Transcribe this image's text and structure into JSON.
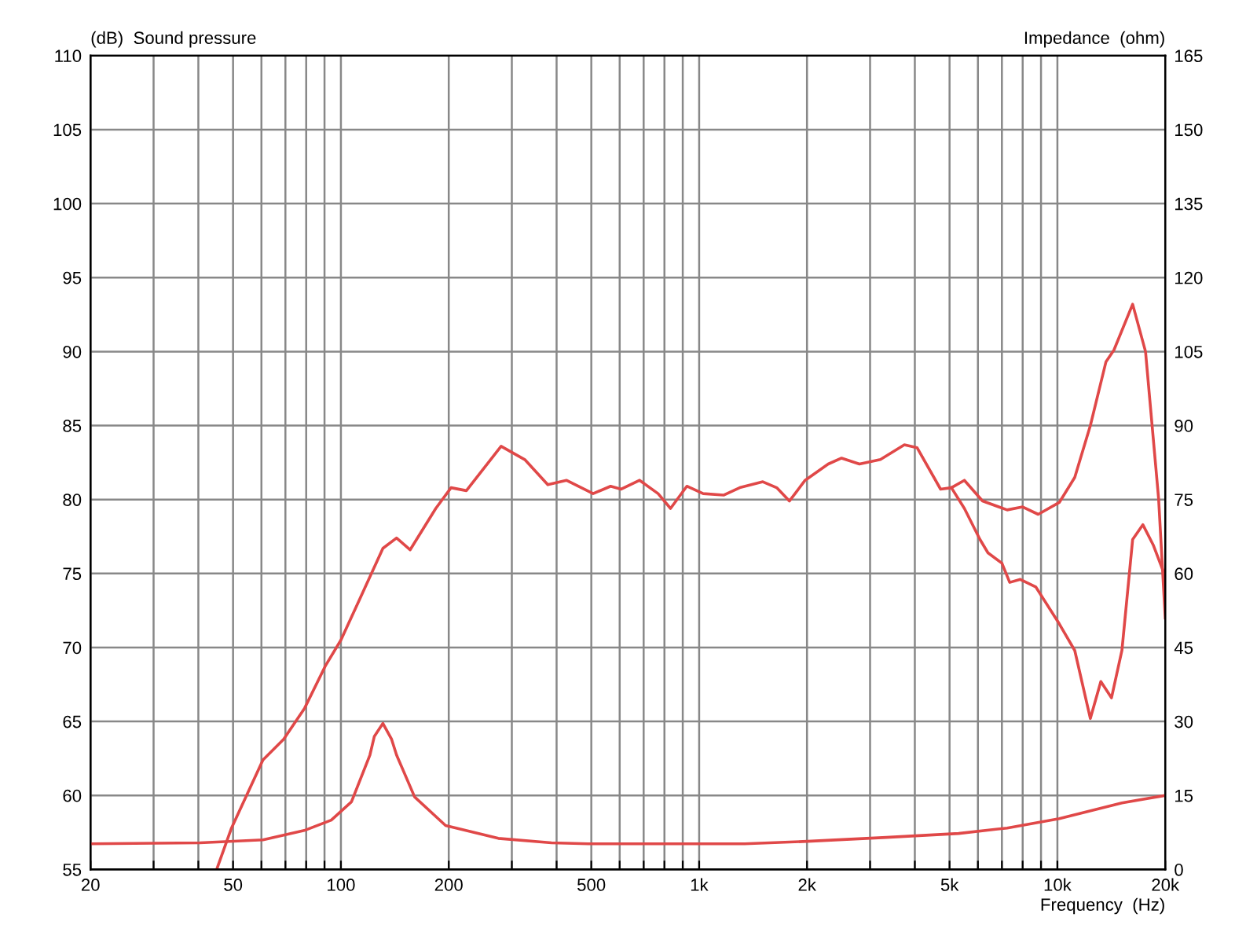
{
  "chart_data": {
    "type": "line",
    "xlabel": "Frequency  (Hz)",
    "ylabel": "(dB)  Sound pressure",
    "y2label": "Impedance  (ohm)",
    "log": "x",
    "grid": true,
    "marker": "none",
    "line_style": "solid",
    "xlim": [
      20,
      20000
    ],
    "xticks": [
      20,
      {
        "value": 30,
        "label": null
      },
      {
        "value": 40,
        "label": null
      },
      50,
      {
        "value": 60,
        "label": null
      },
      {
        "value": 70,
        "label": null
      },
      {
        "value": 80,
        "label": null
      },
      {
        "value": 90,
        "label": null
      },
      100,
      200,
      {
        "value": 300,
        "label": null
      },
      {
        "value": 400,
        "label": null
      },
      500,
      {
        "value": 600,
        "label": null
      },
      {
        "value": 700,
        "label": null
      },
      {
        "value": 800,
        "label": null
      },
      {
        "value": 900,
        "label": null
      },
      {
        "value": 1000,
        "label": "1k"
      },
      {
        "value": 2000,
        "label": "2k"
      },
      {
        "value": 3000,
        "label": null
      },
      {
        "value": 4000,
        "label": null
      },
      {
        "value": 5000,
        "label": "5k"
      },
      {
        "value": 6000,
        "label": null
      },
      {
        "value": 7000,
        "label": null
      },
      {
        "value": 8000,
        "label": null
      },
      {
        "value": 9000,
        "label": null
      },
      {
        "value": 10000,
        "label": "10k"
      },
      {
        "value": 20000,
        "label": "20k"
      }
    ],
    "ylim": [
      55,
      110
    ],
    "yticks": [
      55,
      60,
      65,
      70,
      75,
      80,
      85,
      90,
      95,
      100,
      105,
      110
    ],
    "y2lim": [
      0,
      165
    ],
    "y2ticks": [
      0,
      15,
      30,
      45,
      60,
      75,
      90,
      105,
      120,
      135,
      150,
      165
    ],
    "series": [
      {
        "color": "#e04848",
        "x": [
          45,
          49.5,
          60.6,
          69.2,
          79.2,
          90.7,
          100,
          115,
          131,
          143,
          156,
          184,
          203,
          224,
          280,
          326,
          378,
          426,
          506,
          566,
          606,
          682,
          768,
          832,
          924,
          1026,
          1170,
          1298,
          1506,
          1646,
          1786,
          1976,
          2292,
          2498,
          2802,
          3206,
          3740,
          4060,
          4720,
          5060,
          5500,
          6180,
          7240,
          8000,
          8840,
          10120,
          11180,
          12360,
          13660,
          14380,
          16220,
          17620,
          19160,
          20000
        ],
        "values": [
          55,
          57.8,
          62.4,
          63.8,
          65.9,
          68.8,
          70.5,
          73.7,
          76.7,
          77.4,
          76.6,
          79.4,
          80.8,
          80.6,
          83.6,
          82.7,
          81.0,
          81.3,
          80.4,
          80.9,
          80.7,
          81.3,
          80.4,
          79.4,
          80.9,
          80.4,
          80.3,
          80.8,
          81.2,
          80.8,
          79.9,
          81.3,
          82.4,
          82.8,
          82.4,
          82.7,
          83.7,
          83.5,
          80.7,
          80.8,
          81.3,
          79.9,
          79.3,
          79.5,
          79.0,
          79.8,
          81.5,
          85.0,
          89.3,
          90.1,
          93.2,
          90.0,
          80.1,
          72.0
        ]
      },
      {
        "color": "#e04848",
        "x": [
          5060,
          5500,
          6080,
          6400,
          7000,
          7360,
          7880,
          8700,
          10120,
          11180,
          12360,
          13220,
          14160,
          15140,
          16220,
          17320,
          18540,
          20000
        ],
        "values": [
          80.8,
          79.4,
          77.3,
          76.4,
          75.7,
          74.4,
          74.6,
          74.1,
          71.6,
          69.8,
          65.2,
          67.7,
          66.6,
          69.8,
          77.3,
          78.3,
          76.9,
          74.8
        ]
      },
      {
        "color": "#e04848",
        "axis": "y2",
        "x": [
          20,
          40.4,
          60.6,
          79,
          94,
          107,
          120.5,
          124,
          131,
          138.5,
          143,
          160.6,
          196,
          275,
          387,
          490,
          1340,
          2005,
          3330,
          5300,
          7240,
          10120,
          15140,
          20000
        ],
        "values": [
          5.2,
          5.4,
          6.0,
          7.9,
          10.0,
          13.7,
          23.2,
          27.0,
          29.6,
          26.4,
          23.2,
          14.7,
          8.9,
          6.3,
          5.4,
          5.2,
          5.2,
          5.7,
          6.5,
          7.3,
          8.4,
          10.3,
          13.5,
          15.0
        ]
      }
    ]
  }
}
